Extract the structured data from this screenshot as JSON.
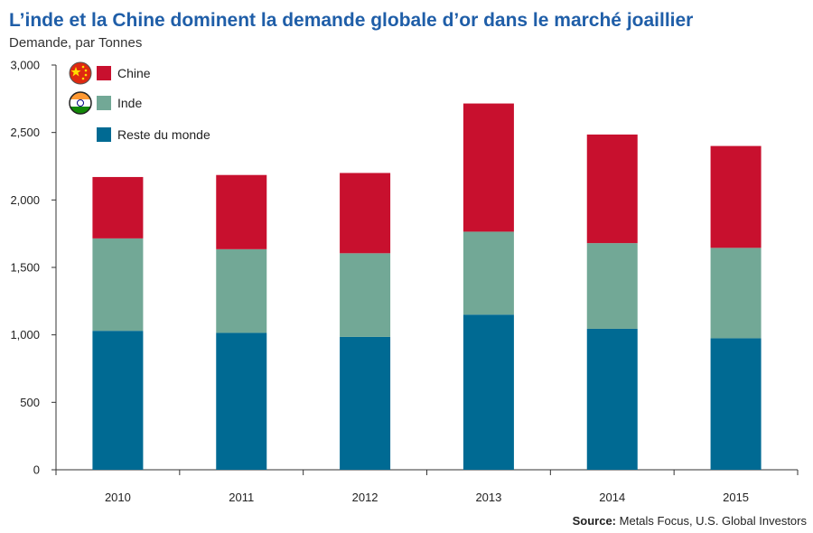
{
  "chart_data": {
    "type": "bar",
    "stacked": true,
    "title": "L’inde et la Chine dominent la demande globale d’or dans le marché joaillier",
    "subtitle": "Demande, par Tonnes",
    "categories": [
      "2010",
      "2011",
      "2012",
      "2013",
      "2014",
      "2015"
    ],
    "series": [
      {
        "name": "Reste du monde",
        "color": "#006a93",
        "values": [
          1030,
          1015,
          985,
          1150,
          1045,
          975
        ]
      },
      {
        "name": "Inde",
        "color": "#72a896",
        "values": [
          685,
          620,
          620,
          615,
          635,
          670
        ]
      },
      {
        "name": "Chine",
        "color": "#c8102e",
        "values": [
          455,
          550,
          595,
          950,
          805,
          755
        ]
      }
    ],
    "ylim": [
      0,
      3000
    ],
    "yticks": [
      0,
      500,
      1000,
      1500,
      2000,
      2500,
      3000
    ],
    "ytick_labels": [
      "0",
      "500",
      "1,000",
      "1,500",
      "2,000",
      "2,500",
      "3,000"
    ],
    "legend": {
      "position": "top-left",
      "order": [
        "Chine",
        "Inde",
        "Reste du monde"
      ],
      "flag_icons": {
        "Chine": "china-flag-icon",
        "Inde": "india-flag-icon"
      }
    },
    "grid": false
  },
  "source": {
    "label": "Source:",
    "text": "Metals Focus, U.S. Global Investors"
  }
}
